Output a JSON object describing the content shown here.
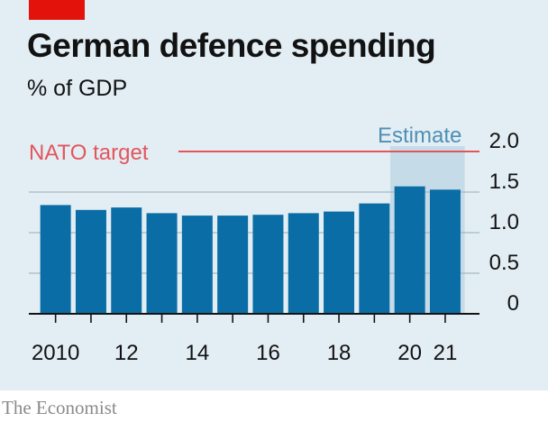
{
  "header": {
    "title": "German defence spending",
    "subtitle": "% of GDP"
  },
  "footer": {
    "source": "The Economist"
  },
  "colors": {
    "bar": "#0a6da6",
    "nato_line": "#e3555b",
    "estimate_band": "#c6dbe8",
    "estimate_text": "#4f8fb5",
    "background": "#e3eef4",
    "brand_red": "#e3120b"
  },
  "chart_data": {
    "type": "bar",
    "title": "German defence spending",
    "subtitle": "% of GDP",
    "categories": [
      "2010",
      "2011",
      "2012",
      "2013",
      "2014",
      "2015",
      "2016",
      "2017",
      "2018",
      "2019",
      "2020",
      "2021"
    ],
    "values": [
      1.34,
      1.28,
      1.31,
      1.24,
      1.21,
      1.21,
      1.22,
      1.24,
      1.26,
      1.36,
      1.57,
      1.53
    ],
    "x_tick_labels": [
      {
        "category": "2010",
        "label": "2010"
      },
      {
        "category": "2012",
        "label": "12"
      },
      {
        "category": "2014",
        "label": "14"
      },
      {
        "category": "2016",
        "label": "16"
      },
      {
        "category": "2018",
        "label": "18"
      },
      {
        "category": "2020",
        "label": "20"
      },
      {
        "category": "2021",
        "label": "21"
      }
    ],
    "y_ticks": [
      {
        "value": 0,
        "label": "0"
      },
      {
        "value": 0.5,
        "label": "0.5"
      },
      {
        "value": 1.0,
        "label": "1.0"
      },
      {
        "value": 1.5,
        "label": "1.5"
      },
      {
        "value": 2.0,
        "label": "2.0"
      }
    ],
    "ylim": [
      0,
      2.0
    ],
    "y_axis_side": "right",
    "grid": true,
    "reference_line": {
      "label": "NATO target",
      "value": 2.0
    },
    "estimate_band": {
      "label": "Estimate",
      "categories": [
        "2020",
        "2021"
      ]
    }
  }
}
